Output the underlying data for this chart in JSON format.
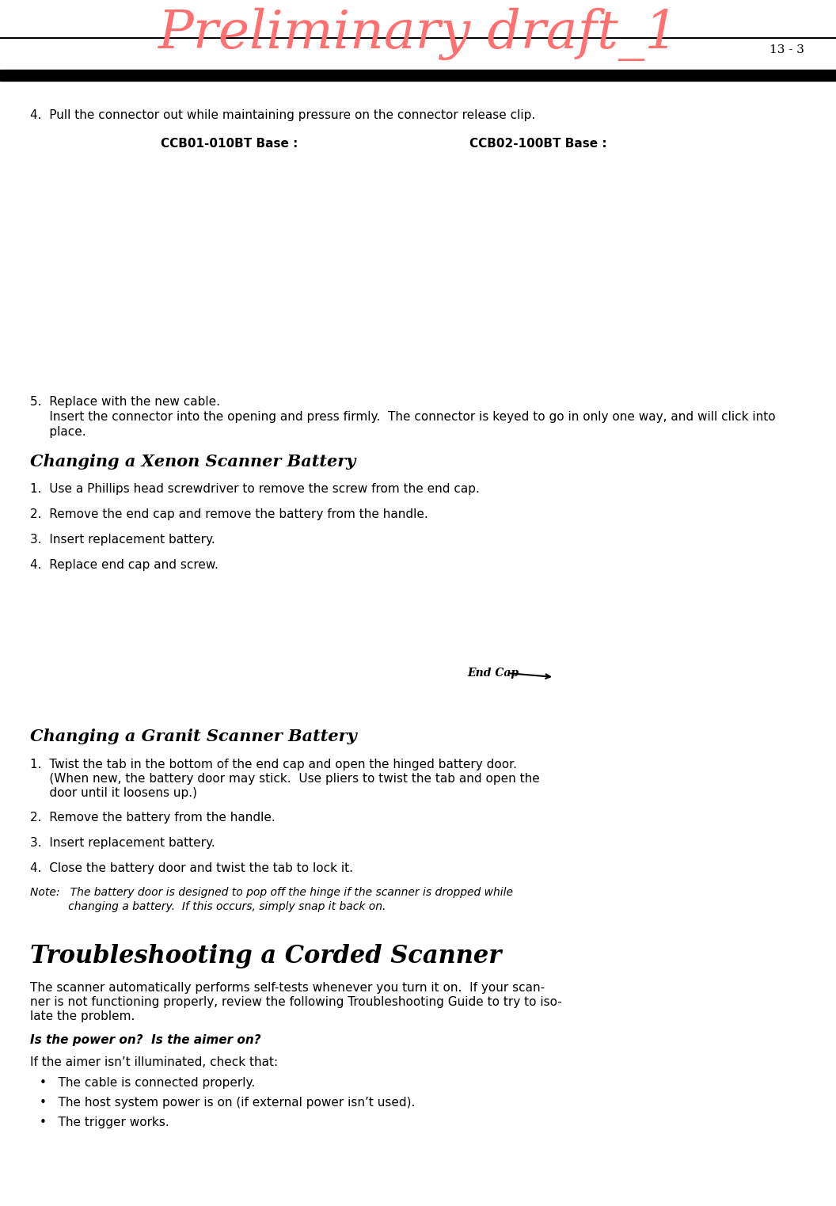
{
  "title": "Preliminary draft_1",
  "title_color": "#FF7070",
  "title_fontsize": 48,
  "page_bg": "#FFFFFF",
  "bar_color": "#000000",
  "page_number": "13 - 3",
  "section4_text": "4.  Pull the connector out while maintaining pressure on the connector release clip.",
  "ccb01_label": "CCB01-010BT Base :",
  "ccb02_label": "CCB02-100BT Base :",
  "section5_line1": "5.  Replace with the new cable.",
  "section5_line2": "     Insert the connector into the opening and press firmly.  The connector is keyed to go in only one way, and will click into",
  "section5_line3": "     place.",
  "xenon_heading": "Changing a Xenon Scanner Battery",
  "xenon_item1": "1.  Use a Phillips head screwdriver to remove the screw from the end cap.",
  "xenon_item2": "2.  Remove the end cap and remove the battery from the handle.",
  "xenon_item3": "3.  Insert replacement battery.",
  "xenon_item4": "4.  Replace end cap and screw.",
  "end_cap_label": "End Cap",
  "granit_heading": "Changing a Granit Scanner Battery",
  "granit_item1a": "1.  Twist the tab in the bottom of the end cap and open the hinged battery door.",
  "granit_item1b": "     (When new, the battery door may stick.  Use pliers to twist the tab and open the",
  "granit_item1c": "     door until it loosens up.)",
  "granit_item2": "2.  Remove the battery from the handle.",
  "granit_item3": "3.  Insert replacement battery.",
  "granit_item4": "4.  Close the battery door and twist the tab to lock it.",
  "granit_note1": "Note:   The battery door is designed to pop off the hinge if the scanner is dropped while",
  "granit_note2": "           changing a battery.  If this occurs, simply snap it back on.",
  "trouble_heading": "Troubleshooting a Corded Scanner",
  "trouble_para1": "The scanner automatically performs self-tests whenever you turn it on.  If your scan-",
  "trouble_para2": "ner is not functioning properly, review the following Troubleshooting Guide to try to iso-",
  "trouble_para3": "late the problem.",
  "trouble_bold": "Is the power on?  Is the aimer on?",
  "trouble_sub": "If the aimer isn’t illuminated, check that:",
  "trouble_bullet1": "The cable is connected properly.",
  "trouble_bullet2": "The host system power is on (if external power isn’t used).",
  "trouble_bullet3": "The trigger works."
}
